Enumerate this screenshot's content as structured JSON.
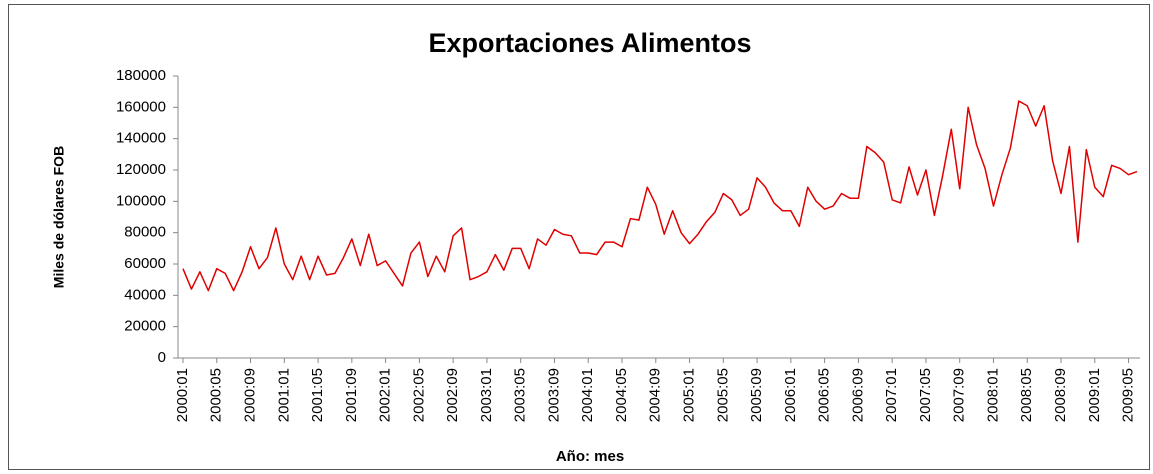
{
  "chart_data": {
    "type": "line",
    "title": "Exportaciones Alimentos",
    "y_label": "Miles de dólares FOB",
    "x_label": "Año: mes",
    "color": "#e00000",
    "categories": [
      "2000:01",
      null,
      null,
      null,
      "2000:05",
      null,
      null,
      null,
      "2000:09",
      null,
      null,
      null,
      "2001:01",
      null,
      null,
      null,
      "2001:05",
      null,
      null,
      null,
      "2001:09",
      null,
      null,
      null,
      "2002:01",
      null,
      null,
      null,
      "2002:05",
      null,
      null,
      null,
      "2002:09",
      null,
      null,
      null,
      "2003:01",
      null,
      null,
      null,
      "2003:05",
      null,
      null,
      null,
      "2003:09",
      null,
      null,
      null,
      "2004:01",
      null,
      null,
      null,
      "2004:05",
      null,
      null,
      null,
      "2004:09",
      null,
      null,
      null,
      "2005:01",
      null,
      null,
      null,
      "2005:05",
      null,
      null,
      null,
      "2005:09",
      null,
      null,
      null,
      "2006:01",
      null,
      null,
      null,
      "2006:05",
      null,
      null,
      null,
      "2006:09",
      null,
      null,
      null,
      "2007:01",
      null,
      null,
      null,
      "2007:05",
      null,
      null,
      null,
      "2007:09",
      null,
      null,
      null,
      "2008:01",
      null,
      null,
      null,
      "2008:05",
      null,
      null,
      null,
      "2008:09",
      null,
      null,
      null,
      "2009:01",
      null,
      null,
      null,
      "2009:05",
      null
    ],
    "values": [
      57000,
      44000,
      55000,
      43000,
      57000,
      54000,
      43000,
      55000,
      71000,
      57000,
      64000,
      83000,
      60000,
      50000,
      65000,
      50000,
      65000,
      53000,
      54000,
      64000,
      76000,
      59000,
      79000,
      59000,
      62000,
      54000,
      46000,
      67000,
      74000,
      52000,
      65000,
      55000,
      78000,
      83000,
      50000,
      52000,
      55000,
      66000,
      56000,
      70000,
      70000,
      57000,
      76000,
      72000,
      82000,
      79000,
      78000,
      67000,
      67000,
      66000,
      74000,
      74000,
      71000,
      89000,
      88000,
      109000,
      98000,
      79000,
      94000,
      80000,
      73000,
      79000,
      87000,
      93000,
      105000,
      101000,
      91000,
      95000,
      115000,
      109000,
      99000,
      94000,
      94000,
      84000,
      109000,
      100000,
      95000,
      97000,
      105000,
      102000,
      102000,
      135000,
      131000,
      125000,
      101000,
      99000,
      122000,
      104000,
      120000,
      91000,
      117000,
      146000,
      108000,
      160000,
      136000,
      121000,
      97000,
      117000,
      134000,
      164000,
      161000,
      148000,
      161000,
      126000,
      105000,
      135000,
      74000,
      133000,
      109000,
      103000,
      123000,
      121000,
      117000,
      119000
    ],
    "ylim": [
      0,
      180000
    ],
    "yticks": [
      0,
      20000,
      40000,
      60000,
      80000,
      100000,
      120000,
      140000,
      160000,
      180000
    ],
    "grid": false
  }
}
